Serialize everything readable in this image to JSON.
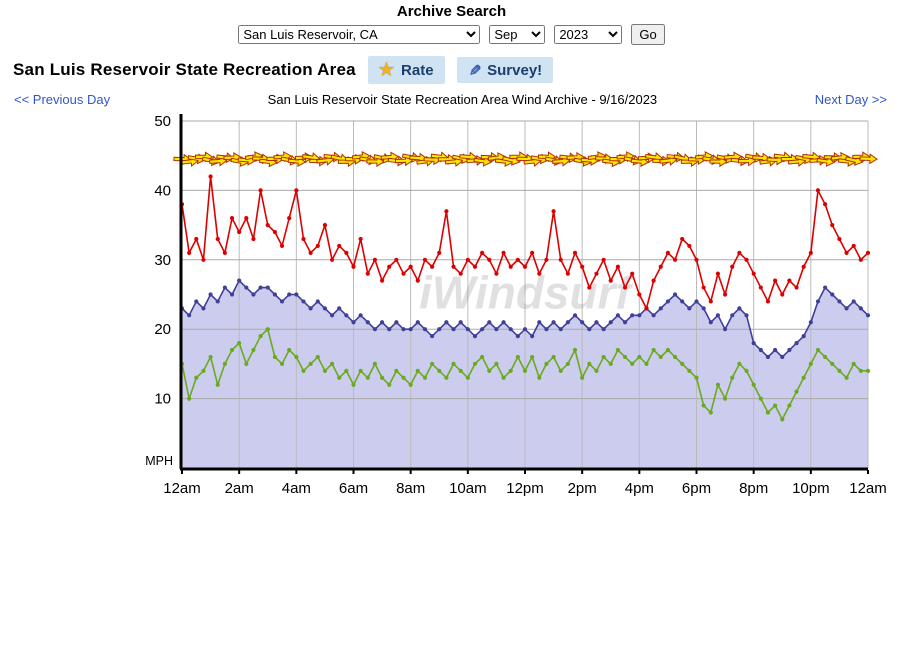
{
  "header": {
    "title": "Archive Search",
    "station_value": "San Luis Reservoir, CA",
    "month_value": "Sep",
    "year_value": "2023",
    "go_label": "Go"
  },
  "titlebar": {
    "station_name": "San Luis Reservoir State Recreation Area",
    "rate_label": "Rate",
    "survey_label": "Survey!",
    "star_glyph": "★",
    "pencil_glyph": "✎"
  },
  "nav": {
    "prev_label": "<< Previous Day",
    "chart_title": "San Luis Reservoir State Recreation Area Wind Archive - 9/16/2023",
    "next_label": "Next Day >>"
  },
  "chart_data": {
    "type": "line",
    "title": "San Luis Reservoir State Recreation Area Wind Archive - 9/16/2023",
    "ylabel": "MPH",
    "ylim": [
      0,
      50
    ],
    "yticks": [
      10,
      20,
      30,
      40,
      50
    ],
    "x_tick_labels": [
      "12am",
      "2am",
      "4am",
      "6am",
      "8am",
      "10am",
      "12pm",
      "2pm",
      "4pm",
      "6pm",
      "8pm",
      "10pm",
      "12am"
    ],
    "sample_interval_minutes": 15,
    "grid": true,
    "watermark": "iWindsurf",
    "colors": {
      "gust": "#dd0000",
      "avg": "#40409a",
      "avg_fill": "#ccccee",
      "lull": "#6aaa1e",
      "arrow_fill": "#ffe800",
      "arrow_stroke": "#b23000",
      "gridline": "#aaaaaa",
      "axis": "#000000"
    },
    "series": [
      {
        "name": "wind-gust",
        "values": [
          38,
          31,
          33,
          30,
          42,
          33,
          31,
          36,
          34,
          36,
          33,
          40,
          35,
          34,
          32,
          36,
          40,
          33,
          31,
          32,
          35,
          30,
          32,
          31,
          29,
          33,
          28,
          30,
          27,
          29,
          30,
          28,
          29,
          27,
          30,
          29,
          31,
          37,
          29,
          28,
          30,
          29,
          31,
          30,
          28,
          31,
          29,
          30,
          29,
          31,
          28,
          30,
          37,
          30,
          28,
          31,
          29,
          26,
          28,
          30,
          27,
          29,
          26,
          28,
          25,
          23,
          27,
          29,
          31,
          30,
          33,
          32,
          30,
          26,
          24,
          28,
          25,
          29,
          31,
          30,
          28,
          26,
          24,
          27,
          25,
          27,
          26,
          29,
          31,
          40,
          38,
          35,
          33,
          31,
          32,
          30,
          31
        ]
      },
      {
        "name": "wind-average",
        "values": [
          23,
          22,
          24,
          23,
          25,
          24,
          26,
          25,
          27,
          26,
          25,
          26,
          26,
          25,
          24,
          25,
          25,
          24,
          23,
          24,
          23,
          22,
          23,
          22,
          21,
          22,
          21,
          20,
          21,
          20,
          21,
          20,
          20,
          21,
          20,
          19,
          20,
          21,
          20,
          21,
          20,
          19,
          20,
          21,
          20,
          21,
          20,
          19,
          20,
          19,
          21,
          20,
          21,
          20,
          21,
          22,
          21,
          20,
          21,
          20,
          21,
          22,
          21,
          22,
          22,
          23,
          22,
          23,
          24,
          25,
          24,
          23,
          24,
          23,
          21,
          22,
          20,
          22,
          23,
          22,
          18,
          17,
          16,
          17,
          16,
          17,
          18,
          19,
          21,
          24,
          26,
          25,
          24,
          23,
          24,
          23,
          22
        ]
      },
      {
        "name": "wind-lull",
        "values": [
          15,
          10,
          13,
          14,
          16,
          12,
          15,
          17,
          18,
          15,
          17,
          19,
          20,
          16,
          15,
          17,
          16,
          14,
          15,
          16,
          14,
          15,
          13,
          14,
          12,
          14,
          13,
          15,
          13,
          12,
          14,
          13,
          12,
          14,
          13,
          15,
          14,
          13,
          15,
          14,
          13,
          15,
          16,
          14,
          15,
          13,
          14,
          16,
          14,
          16,
          13,
          15,
          16,
          14,
          15,
          17,
          13,
          15,
          14,
          16,
          15,
          17,
          16,
          15,
          16,
          15,
          17,
          16,
          17,
          16,
          15,
          14,
          13,
          9,
          8,
          12,
          10,
          13,
          15,
          14,
          12,
          10,
          8,
          9,
          7,
          9,
          11,
          13,
          15,
          17,
          16,
          15,
          14,
          13,
          15,
          14,
          14
        ]
      }
    ],
    "direction_band": {
      "mph_level": 44.5,
      "angles_deg": [
        2,
        -6,
        9,
        1,
        12,
        -4,
        6,
        -2,
        10,
        4,
        -8,
        3,
        7,
        0,
        -5,
        11,
        5,
        -3,
        8,
        2,
        -7,
        6,
        13,
        -1,
        2,
        -6,
        9,
        1,
        12,
        -4,
        6,
        -2,
        10,
        4,
        -8,
        3,
        7,
        0,
        -5,
        11,
        5,
        -3,
        8,
        2,
        -7,
        6,
        13,
        -1,
        2,
        -6,
        9,
        1,
        12,
        -4,
        6,
        -2,
        10,
        4,
        -8,
        3,
        7,
        0,
        -5,
        11,
        5,
        -3,
        8,
        2,
        -7,
        6,
        13,
        -1,
        2,
        -6,
        9,
        1,
        12,
        -4,
        6,
        -2,
        10,
        4,
        -8,
        3,
        7,
        0,
        -5,
        11,
        5,
        -3,
        8,
        2,
        -7,
        6,
        13,
        -1,
        2
      ]
    }
  }
}
